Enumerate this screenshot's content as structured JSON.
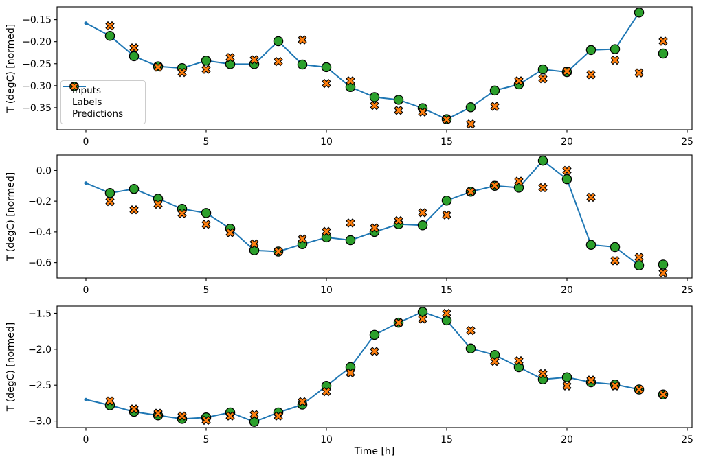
{
  "figure": {
    "background": "#ffffff",
    "xlabel": "Time [h]",
    "ylabel": "T (degC) [normed]"
  },
  "chart_data": [
    {
      "type": "line",
      "panel": "top",
      "ylabel": "T (degC) [normed]",
      "xlabel": "",
      "xlim": [
        -1.2,
        25.2
      ],
      "ylim": [
        -0.4,
        -0.121
      ],
      "xticks": [
        0,
        5,
        10,
        15,
        20,
        25
      ],
      "xtick_labels": [
        "0",
        "5",
        "10",
        "15",
        "20",
        "25"
      ],
      "yticks": [
        -0.15,
        -0.2,
        -0.25,
        -0.3,
        -0.35
      ],
      "ytick_labels": [
        "−0.15",
        "−0.20",
        "−0.25",
        "−0.30",
        "−0.35"
      ],
      "legend": true,
      "legend_position": "center-left",
      "series": [
        {
          "name": "Inputs",
          "style": "line-dot",
          "color": "#1f77b4",
          "x": [
            0,
            1,
            2,
            3,
            4,
            5,
            6,
            7,
            8,
            9,
            10,
            11,
            12,
            13,
            14,
            15,
            16,
            17,
            18,
            19,
            20,
            21,
            22,
            23
          ],
          "y": [
            -0.158,
            -0.187,
            -0.233,
            -0.256,
            -0.26,
            -0.243,
            -0.251,
            -0.251,
            -0.199,
            -0.252,
            -0.258,
            -0.303,
            -0.326,
            -0.332,
            -0.351,
            -0.376,
            -0.349,
            -0.311,
            -0.297,
            -0.263,
            -0.269,
            -0.219,
            -0.217,
            -0.134
          ]
        },
        {
          "name": "Labels",
          "style": "scatter-circle",
          "color": "#2ca02c",
          "edge_color": "#000000",
          "x": [
            1,
            2,
            3,
            4,
            5,
            6,
            7,
            8,
            9,
            10,
            11,
            12,
            13,
            14,
            15,
            16,
            17,
            18,
            19,
            20,
            21,
            22,
            23,
            24
          ],
          "y": [
            -0.187,
            -0.233,
            -0.256,
            -0.26,
            -0.243,
            -0.251,
            -0.251,
            -0.199,
            -0.252,
            -0.258,
            -0.303,
            -0.326,
            -0.332,
            -0.351,
            -0.376,
            -0.349,
            -0.311,
            -0.297,
            -0.263,
            -0.269,
            -0.219,
            -0.217,
            -0.134,
            -0.227
          ]
        },
        {
          "name": "Predictions",
          "style": "scatter-x",
          "color": "#ff7f0e",
          "edge_color": "#000000",
          "x": [
            1,
            2,
            3,
            4,
            5,
            6,
            7,
            8,
            9,
            10,
            11,
            12,
            13,
            14,
            15,
            16,
            17,
            18,
            19,
            20,
            21,
            22,
            23,
            24
          ],
          "y": [
            -0.164,
            -0.214,
            -0.258,
            -0.27,
            -0.263,
            -0.236,
            -0.241,
            -0.245,
            -0.196,
            -0.295,
            -0.289,
            -0.345,
            -0.356,
            -0.36,
            -0.377,
            -0.387,
            -0.347,
            -0.289,
            -0.284,
            -0.267,
            -0.275,
            -0.242,
            -0.271,
            -0.199
          ]
        }
      ]
    },
    {
      "type": "line",
      "panel": "middle",
      "ylabel": "T (degC) [normed]",
      "xlabel": "",
      "xlim": [
        -1.2,
        25.2
      ],
      "ylim": [
        -0.7,
        0.1
      ],
      "xticks": [
        0,
        5,
        10,
        15,
        20,
        25
      ],
      "xtick_labels": [
        "0",
        "5",
        "10",
        "15",
        "20",
        "25"
      ],
      "yticks": [
        0.0,
        -0.2,
        -0.4,
        -0.6
      ],
      "ytick_labels": [
        "0.0",
        "−0.2",
        "−0.4",
        "−0.6"
      ],
      "legend": false,
      "series": [
        {
          "name": "Inputs",
          "style": "line-dot",
          "color": "#1f77b4",
          "x": [
            0,
            1,
            2,
            3,
            4,
            5,
            6,
            7,
            8,
            9,
            10,
            11,
            12,
            13,
            14,
            15,
            16,
            17,
            18,
            19,
            20,
            21,
            22,
            23
          ],
          "y": [
            -0.082,
            -0.147,
            -0.12,
            -0.184,
            -0.25,
            -0.277,
            -0.379,
            -0.52,
            -0.528,
            -0.48,
            -0.436,
            -0.454,
            -0.4,
            -0.35,
            -0.357,
            -0.196,
            -0.138,
            -0.1,
            -0.112,
            0.064,
            -0.057,
            -0.484,
            -0.499,
            -0.618
          ]
        },
        {
          "name": "Labels",
          "style": "scatter-circle",
          "color": "#2ca02c",
          "edge_color": "#000000",
          "x": [
            1,
            2,
            3,
            4,
            5,
            6,
            7,
            8,
            9,
            10,
            11,
            12,
            13,
            14,
            15,
            16,
            17,
            18,
            19,
            20,
            21,
            22,
            23,
            24
          ],
          "y": [
            -0.147,
            -0.12,
            -0.184,
            -0.25,
            -0.277,
            -0.379,
            -0.52,
            -0.528,
            -0.48,
            -0.436,
            -0.454,
            -0.4,
            -0.35,
            -0.357,
            -0.196,
            -0.138,
            -0.1,
            -0.112,
            0.064,
            -0.057,
            -0.484,
            -0.499,
            -0.618,
            -0.613
          ]
        },
        {
          "name": "Predictions",
          "style": "scatter-x",
          "color": "#ff7f0e",
          "edge_color": "#000000",
          "x": [
            1,
            2,
            3,
            4,
            5,
            6,
            7,
            8,
            9,
            10,
            11,
            12,
            13,
            14,
            15,
            16,
            17,
            18,
            19,
            20,
            21,
            22,
            23,
            24
          ],
          "y": [
            -0.202,
            -0.256,
            -0.22,
            -0.281,
            -0.351,
            -0.405,
            -0.478,
            -0.527,
            -0.446,
            -0.397,
            -0.342,
            -0.374,
            -0.327,
            -0.275,
            -0.29,
            -0.138,
            -0.098,
            -0.07,
            -0.112,
            0.0,
            -0.175,
            -0.588,
            -0.566,
            -0.667
          ]
        }
      ]
    },
    {
      "type": "line",
      "panel": "bottom",
      "ylabel": "T (degC) [normed]",
      "xlabel": "Time [h]",
      "xlim": [
        -1.2,
        25.2
      ],
      "ylim": [
        -3.09,
        -1.4
      ],
      "xticks": [
        0,
        5,
        10,
        15,
        20,
        25
      ],
      "xtick_labels": [
        "0",
        "5",
        "10",
        "15",
        "20",
        "25"
      ],
      "yticks": [
        -1.5,
        -2.0,
        -2.5,
        -3.0
      ],
      "ytick_labels": [
        "−1.5",
        "−2.0",
        "−2.5",
        "−3.0"
      ],
      "legend": false,
      "series": [
        {
          "name": "Inputs",
          "style": "line-dot",
          "color": "#1f77b4",
          "x": [
            0,
            1,
            2,
            3,
            4,
            5,
            6,
            7,
            8,
            9,
            10,
            11,
            12,
            13,
            14,
            15,
            16,
            17,
            18,
            19,
            20,
            21,
            22,
            23
          ],
          "y": [
            -2.7,
            -2.78,
            -2.87,
            -2.92,
            -2.97,
            -2.95,
            -2.88,
            -3.01,
            -2.88,
            -2.77,
            -2.51,
            -2.25,
            -1.8,
            -1.63,
            -1.48,
            -1.6,
            -1.99,
            -2.08,
            -2.25,
            -2.42,
            -2.39,
            -2.46,
            -2.49,
            -2.56
          ]
        },
        {
          "name": "Labels",
          "style": "scatter-circle",
          "color": "#2ca02c",
          "edge_color": "#000000",
          "x": [
            1,
            2,
            3,
            4,
            5,
            6,
            7,
            8,
            9,
            10,
            11,
            12,
            13,
            14,
            15,
            16,
            17,
            18,
            19,
            20,
            21,
            22,
            23,
            24
          ],
          "y": [
            -2.78,
            -2.87,
            -2.92,
            -2.97,
            -2.95,
            -2.88,
            -3.01,
            -2.88,
            -2.77,
            -2.51,
            -2.25,
            -1.8,
            -1.63,
            -1.48,
            -1.6,
            -1.99,
            -2.08,
            -2.25,
            -2.42,
            -2.39,
            -2.46,
            -2.49,
            -2.56,
            -2.63
          ]
        },
        {
          "name": "Predictions",
          "style": "scatter-x",
          "color": "#ff7f0e",
          "edge_color": "#000000",
          "x": [
            1,
            2,
            3,
            4,
            5,
            6,
            7,
            8,
            9,
            10,
            11,
            12,
            13,
            14,
            15,
            16,
            17,
            18,
            19,
            20,
            21,
            22,
            23,
            24
          ],
          "y": [
            -2.72,
            -2.83,
            -2.89,
            -2.93,
            -2.99,
            -2.93,
            -2.91,
            -2.93,
            -2.73,
            -2.59,
            -2.33,
            -2.03,
            -1.63,
            -1.58,
            -1.5,
            -1.74,
            -2.17,
            -2.16,
            -2.34,
            -2.51,
            -2.43,
            -2.51,
            -2.56,
            -2.63
          ]
        }
      ]
    }
  ]
}
